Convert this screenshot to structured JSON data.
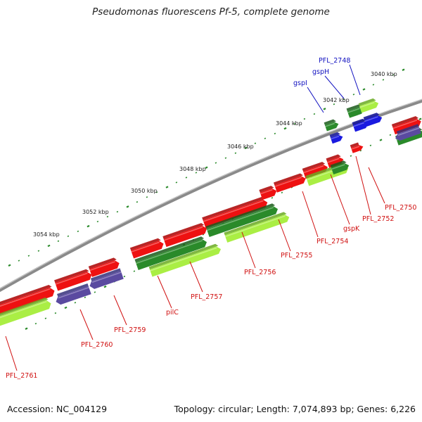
{
  "title": "Pseudomonas fluorescens Pf-5, complete genome",
  "footer": {
    "accession": "Accession: NC_004129",
    "stats": "Topology: circular; Length: 7,074,893 bp; Genes: 6,226"
  },
  "colors": {
    "backbone": "#8a8a8a",
    "gene_red": "#ee1111",
    "gene_blue": "#1a1ae0",
    "gene_green_dark": "#2a8a2a",
    "gene_green_light": "#aaee44",
    "gene_purple": "#5a4aa0",
    "tick_green": "#2a8a2a"
  },
  "kbp_labels": [
    "3040 kbp",
    "3042 kbp",
    "3044 kbp",
    "3046 kbp",
    "3048 kbp",
    "3050 kbp",
    "3052 kbp",
    "3054 kbp"
  ],
  "gene_labels_red": [
    "PFL_2750",
    "PFL_2752",
    "gspK",
    "PFL_2754",
    "PFL_2755",
    "PFL_2756",
    "PFL_2757",
    "pilC",
    "PFL_2759",
    "PFL_2760",
    "PFL_2761"
  ],
  "gene_labels_blue": [
    "PFL_2748",
    "gspH",
    "gspI"
  ]
}
